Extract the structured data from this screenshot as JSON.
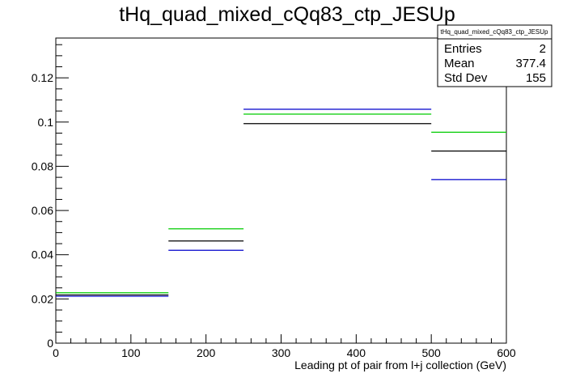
{
  "chart_data": {
    "type": "histogram-step",
    "title": "tHq_quad_mixed_cQq83_ctp_JESUp",
    "xlabel": "Leading pt of pair from l+j collection (GeV)",
    "ylabel": "",
    "xlim": [
      0,
      600
    ],
    "ylim": [
      0,
      0.138
    ],
    "x_ticks": [
      0,
      100,
      200,
      300,
      400,
      500,
      600
    ],
    "y_ticks": [
      0,
      0.02,
      0.04,
      0.06,
      0.08,
      0.1,
      0.12
    ],
    "y_tick_labels": [
      "0",
      "0.02",
      "0.04",
      "0.06",
      "0.08",
      "0.1",
      "0.12"
    ],
    "bin_edges": [
      0,
      150,
      250,
      500,
      600
    ],
    "series": [
      {
        "color": "#000000",
        "values": [
          0.0218,
          0.0462,
          0.0993,
          0.0869
        ]
      },
      {
        "color": "#00cc00",
        "values": [
          0.0228,
          0.0517,
          0.1036,
          0.0954
        ]
      },
      {
        "color": "#0000cc",
        "values": [
          0.0212,
          0.042,
          0.1058,
          0.074
        ]
      }
    ],
    "stats_box": {
      "title": "tHq_quad_mixed_cQq83_ctp_JESUp",
      "rows": [
        {
          "label": "Entries",
          "value": "2"
        },
        {
          "label": "Mean",
          "value": "377.4"
        },
        {
          "label": "Std Dev",
          "value": "155"
        }
      ]
    }
  }
}
